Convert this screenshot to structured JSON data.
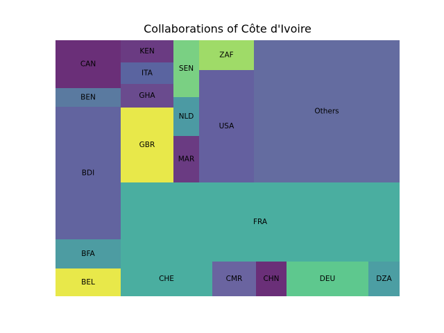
{
  "chart_data": {
    "type": "treemap",
    "title": "Collaborations of Côte d'Ivoire",
    "xlabel": "",
    "ylabel": "",
    "grid": false,
    "legend": "none",
    "cells": [
      {
        "label": "BEL",
        "value": 37,
        "color": "#e8e84a"
      },
      {
        "label": "BFA",
        "value": 38,
        "color": "#4d9ca2"
      },
      {
        "label": "BDI",
        "value": 173,
        "color": "#62649f"
      },
      {
        "label": "BEN",
        "value": 25,
        "color": "#5a7aa0"
      },
      {
        "label": "CAN",
        "value": 61,
        "color": "#6a2f78"
      },
      {
        "label": "GBR",
        "value": 80,
        "color": "#e8e84a"
      },
      {
        "label": "GHA",
        "value": 25,
        "color": "#6a4b8e"
      },
      {
        "label": "ITA",
        "value": 24,
        "color": "#5a64a0"
      },
      {
        "label": "KEN",
        "value": 24,
        "color": "#6a3b82"
      },
      {
        "label": "MAR",
        "value": 24,
        "color": "#6a3b82"
      },
      {
        "label": "NLD",
        "value": 20,
        "color": "#4c9aa3"
      },
      {
        "label": "SEN",
        "value": 30,
        "color": "#7ad083"
      },
      {
        "label": "ZAF",
        "value": 25,
        "color": "#9fdb68"
      },
      {
        "label": "USA",
        "value": 98,
        "color": "#64609f"
      },
      {
        "label": "Others",
        "value": 272,
        "color": "#646ca0"
      },
      {
        "label": "FRA",
        "value": 364,
        "color": "#4aaea0"
      },
      {
        "label": "CHE",
        "value": 105,
        "color": "#4aaea0"
      },
      {
        "label": "CMR",
        "value": 50,
        "color": "#6a64a0"
      },
      {
        "label": "CHN",
        "value": 35,
        "color": "#6a2f78"
      },
      {
        "label": "DEU",
        "value": 94,
        "color": "#5ec88e"
      },
      {
        "label": "DZA",
        "value": 36,
        "color": "#4c9ea3"
      }
    ]
  }
}
